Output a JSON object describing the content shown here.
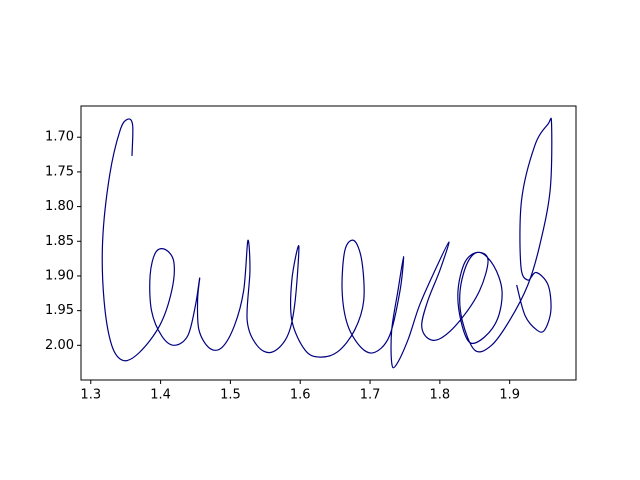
{
  "chart_data": {
    "type": "line",
    "color": "#000080",
    "x": [
      1.359,
      1.36,
      1.353,
      1.342,
      1.327,
      1.317,
      1.319,
      1.33,
      1.347,
      1.37,
      1.399,
      1.416,
      1.419,
      1.407,
      1.393,
      1.385,
      1.387,
      1.402,
      1.42,
      1.439,
      1.45,
      1.456,
      1.453,
      1.455,
      1.47,
      1.488,
      1.506,
      1.519,
      1.525,
      1.528,
      1.524,
      1.538,
      1.559,
      1.581,
      1.592,
      1.598,
      1.588,
      1.588,
      1.607,
      1.628,
      1.654,
      1.678,
      1.691,
      1.688,
      1.677,
      1.664,
      1.66,
      1.668,
      1.688,
      1.707,
      1.728,
      1.743,
      1.748,
      1.74,
      1.731,
      1.731,
      1.737,
      1.754,
      1.771,
      1.793,
      1.813,
      1.8,
      1.783,
      1.774,
      1.783,
      1.801,
      1.829,
      1.857,
      1.869,
      1.854,
      1.836,
      1.826,
      1.83,
      1.843,
      1.864,
      1.883,
      1.889,
      1.877,
      1.857,
      1.84,
      1.829,
      1.832,
      1.85,
      1.874,
      1.9,
      1.926,
      1.943,
      1.958,
      1.96,
      1.955,
      1.936,
      1.917,
      1.916,
      1.926,
      1.938,
      1.955,
      1.959,
      1.95,
      1.939,
      1.922,
      1.91
    ],
    "values": [
      1.727,
      1.683,
      1.674,
      1.69,
      1.755,
      1.849,
      1.935,
      2.0,
      2.022,
      2.01,
      1.971,
      1.921,
      1.88,
      1.862,
      1.866,
      1.899,
      1.95,
      1.987,
      2.0,
      1.986,
      1.942,
      1.903,
      1.935,
      1.978,
      2.004,
      2.003,
      1.971,
      1.921,
      1.849,
      1.892,
      1.964,
      2.0,
      2.01,
      1.988,
      1.942,
      1.857,
      1.906,
      1.964,
      2.007,
      2.017,
      2.009,
      1.978,
      1.935,
      1.877,
      1.849,
      1.863,
      1.921,
      1.971,
      2.004,
      2.01,
      1.986,
      1.921,
      1.872,
      1.921,
      1.978,
      2.025,
      2.029,
      1.993,
      1.942,
      1.892,
      1.851,
      1.892,
      1.935,
      1.971,
      1.99,
      1.99,
      1.964,
      1.921,
      1.877,
      1.866,
      1.88,
      1.921,
      1.964,
      1.996,
      1.988,
      1.961,
      1.921,
      1.885,
      1.866,
      1.88,
      1.921,
      1.964,
      2.007,
      2.0,
      1.964,
      1.913,
      1.856,
      1.776,
      1.681,
      1.681,
      1.712,
      1.791,
      1.885,
      1.906,
      1.895,
      1.913,
      1.95,
      1.978,
      1.978,
      1.957,
      1.913
    ],
    "xlim": [
      1.286,
      1.995
    ],
    "xticks": [
      1.3,
      1.4,
      1.5,
      1.6,
      1.7,
      1.8,
      1.9
    ],
    "ylim": [
      2.05,
      1.655
    ],
    "yticks": [
      {
        "value": 1.7,
        "label": "1.70"
      },
      {
        "value": 1.75,
        "label": "1.75"
      },
      {
        "value": 1.8,
        "label": "1.80"
      },
      {
        "value": 1.85,
        "label": "1.85"
      },
      {
        "value": 1.9,
        "label": "1.90"
      },
      {
        "value": 1.95,
        "label": "1.95"
      },
      {
        "value": 2.0,
        "label": "2.00"
      }
    ],
    "grid": false
  }
}
